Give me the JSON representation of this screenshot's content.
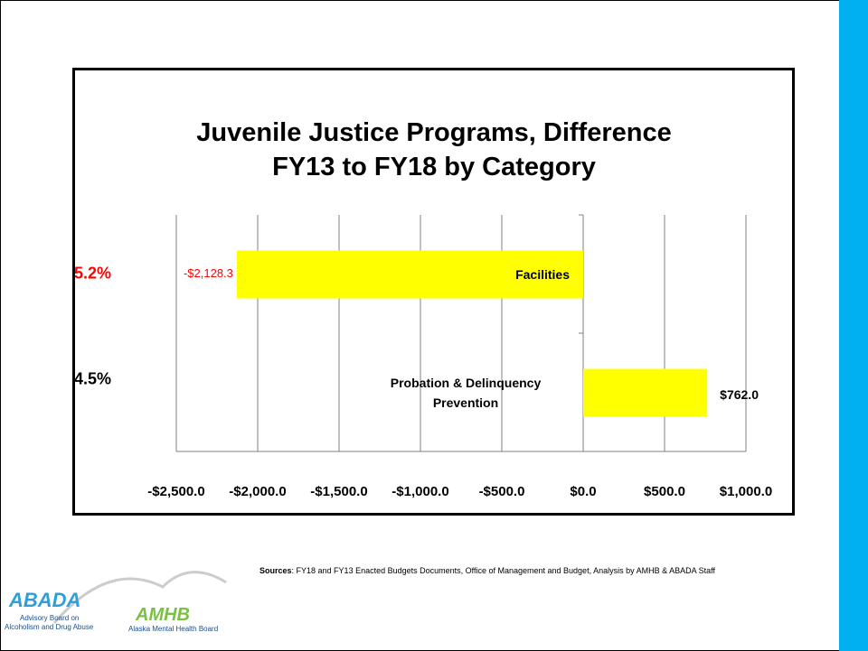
{
  "chart_data": {
    "type": "barh",
    "title": "Juvenile Justice Programs, Difference FY13 to FY18 by Category",
    "categories": [
      "Facilities",
      "Probation & Delinquency Prevention"
    ],
    "series": [
      {
        "name": "Difference",
        "color": "#ffff00",
        "values": [
          -2128.3,
          762.0
        ],
        "value_labels": [
          "-$2,128.3",
          "$762.0"
        ],
        "label_colors": [
          "#ff0000",
          "#000000"
        ]
      }
    ],
    "xlim": [
      -2500,
      1000
    ],
    "xticks": [
      {
        "value": -2500,
        "label": "-$2,500.0"
      },
      {
        "value": -2000,
        "label": "-$2,000.0"
      },
      {
        "value": -1500,
        "label": "-$1,500.0"
      },
      {
        "value": -1000,
        "label": "-$1,000.0"
      },
      {
        "value": -500,
        "label": "-$500.0"
      },
      {
        "value": 0,
        "label": "$0.0"
      },
      {
        "value": 500,
        "label": "$500.0"
      },
      {
        "value": 1000,
        "label": "$1,000.0"
      }
    ],
    "grid": true,
    "annotations": [
      {
        "text": "5.2%",
        "color": "#ff0000"
      },
      {
        "text": "4.5%",
        "color": "#000000"
      }
    ]
  },
  "source": {
    "label": "Sources",
    "text": ": FY18 and FY13 Enacted Budgets Documents, Office of Management and Budget, Analysis by AMHB & ABADA Staff"
  },
  "logo": {
    "abada": "ABADA",
    "abada_line1": "Advisory Board on",
    "abada_line2": "Alcoholism and Drug Abuse",
    "amhb": "AMHB",
    "amhb_line": "Alaska Mental Health Board"
  }
}
